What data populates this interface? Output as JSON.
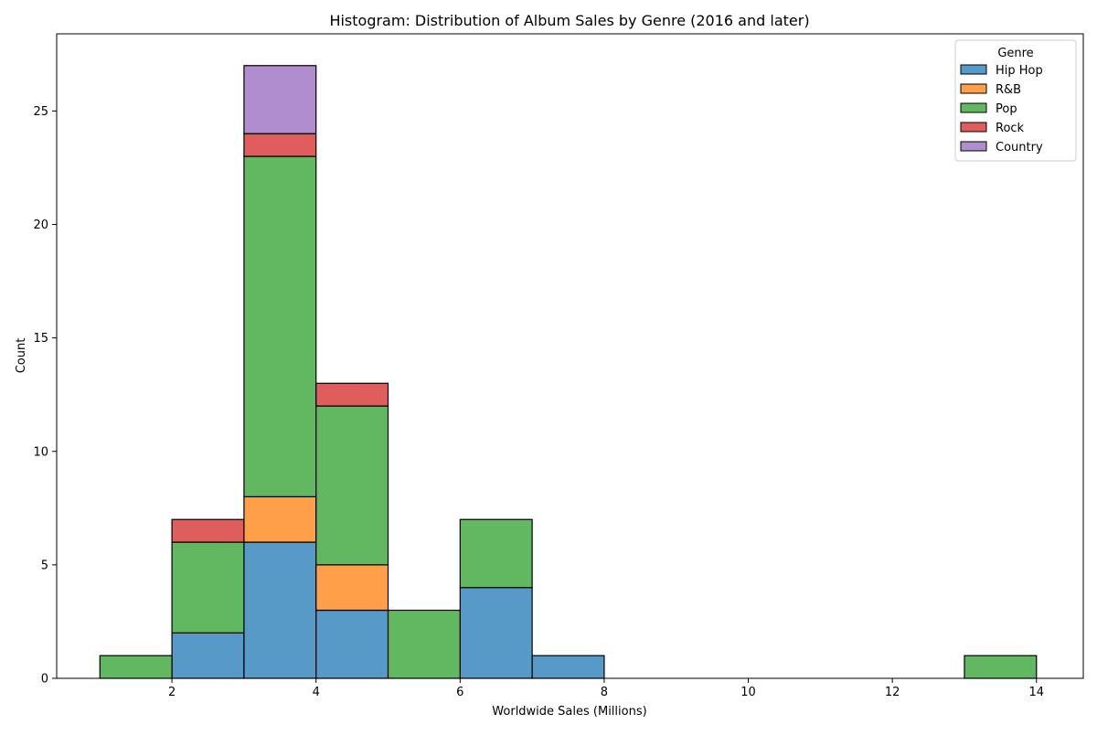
{
  "chart_data": {
    "type": "bar",
    "title": "Histogram: Distribution of Album Sales by Genre (2016 and later)",
    "xlabel": "Worldwide Sales (Millions)",
    "ylabel": "Count",
    "stacked": true,
    "bin_edges": [
      1,
      2,
      3,
      4,
      5,
      6,
      7,
      8,
      9,
      10,
      11,
      12,
      13,
      14
    ],
    "xlim": [
      0.4,
      14.65
    ],
    "ylim": [
      0,
      28.4
    ],
    "xticks": [
      2,
      4,
      6,
      8,
      10,
      12,
      14
    ],
    "yticks": [
      0,
      5,
      10,
      15,
      20,
      25
    ],
    "grid": false,
    "legend": {
      "title": "Genre",
      "position": "top-right"
    },
    "series": [
      {
        "name": "Hip Hop",
        "color": "#1f77b4",
        "values": [
          0,
          2,
          6,
          3,
          0,
          4,
          1,
          0,
          0,
          0,
          0,
          0,
          0
        ]
      },
      {
        "name": "R&B",
        "color": "#ff7f0e",
        "values": [
          0,
          0,
          2,
          2,
          0,
          0,
          0,
          0,
          0,
          0,
          0,
          0,
          0
        ]
      },
      {
        "name": "Pop",
        "color": "#2ca02c",
        "values": [
          1,
          4,
          15,
          7,
          3,
          3,
          0,
          0,
          0,
          0,
          0,
          0,
          1
        ]
      },
      {
        "name": "Rock",
        "color": "#d62728",
        "values": [
          0,
          1,
          1,
          1,
          0,
          0,
          0,
          0,
          0,
          0,
          0,
          0,
          0
        ]
      },
      {
        "name": "Country",
        "color": "#9467bd",
        "values": [
          0,
          0,
          3,
          0,
          0,
          0,
          0,
          0,
          0,
          0,
          0,
          0,
          0
        ]
      }
    ]
  }
}
